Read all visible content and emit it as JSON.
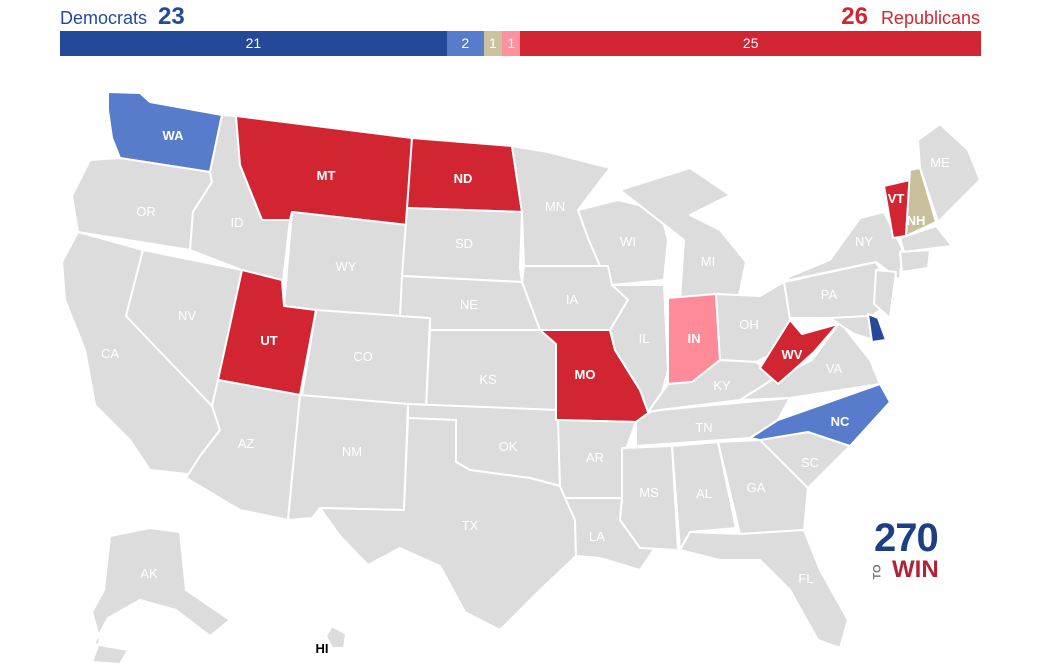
{
  "header": {
    "dem_label": "Democrats",
    "dem_total": "23",
    "rep_total": "26",
    "rep_label": "Republicans"
  },
  "bar": [
    {
      "id": "safe-dem",
      "count": 21,
      "label": "21",
      "color": "#244999"
    },
    {
      "id": "likely-dem",
      "count": 2,
      "label": "2",
      "color": "#577ccc"
    },
    {
      "id": "tossup",
      "count": 1,
      "label": "1",
      "color": "#c9c09b"
    },
    {
      "id": "likely-rep",
      "count": 1,
      "label": "1",
      "color": "#ff8b98"
    },
    {
      "id": "safe-rep",
      "count": 25,
      "label": "25",
      "color": "#d22532"
    }
  ],
  "colors": {
    "safe_dem": "#244999",
    "likely_dem": "#577ccc",
    "tossup": "#c9c09b",
    "likely_rep": "#ff8b98",
    "safe_rep": "#d22532",
    "no_race": "#dcdcdc",
    "dem_text": "#244999",
    "rep_text": "#d22532"
  },
  "states": {
    "WA": "likely_dem",
    "OR": "no_race",
    "CA": "no_race",
    "NV": "no_race",
    "ID": "no_race",
    "MT": "safe_rep",
    "WY": "no_race",
    "UT": "safe_rep",
    "AZ": "no_race",
    "CO": "no_race",
    "NM": "no_race",
    "ND": "safe_rep",
    "SD": "no_race",
    "NE": "no_race",
    "KS": "no_race",
    "OK": "no_race",
    "TX": "no_race",
    "MN": "no_race",
    "IA": "no_race",
    "MO": "safe_rep",
    "AR": "no_race",
    "LA": "no_race",
    "WI": "no_race",
    "IL": "no_race",
    "MI": "no_race",
    "IN": "likely_rep",
    "OH": "no_race",
    "KY": "no_race",
    "TN": "no_race",
    "MS": "no_race",
    "AL": "no_race",
    "GA": "no_race",
    "FL": "no_race",
    "SC": "no_race",
    "NC": "likely_dem",
    "VA": "no_race",
    "WV": "safe_rep",
    "PA": "no_race",
    "NY": "no_race",
    "VT": "safe_rep",
    "NH": "tossup",
    "ME": "no_race",
    "DE": "safe_dem",
    "AK": "no_race",
    "HI": "no_race"
  },
  "logo": {
    "number": "270",
    "to": "TO",
    "win": "WIN"
  }
}
